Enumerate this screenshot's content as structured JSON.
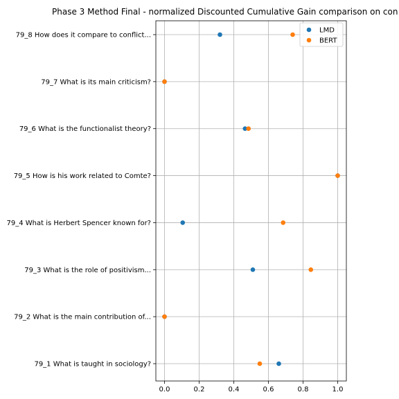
{
  "chart_data": {
    "type": "scatter",
    "title": "Phase 3 Method Final - normalized Discounted Cumulative Gain comparison on con",
    "xlabel": "",
    "ylabel": "",
    "xlim": [
      -0.05,
      1.05
    ],
    "x_ticks": [
      "0.0",
      "0.2",
      "0.4",
      "0.6",
      "0.8",
      "1.0"
    ],
    "grid": true,
    "legend_position": "top-right",
    "categories": [
      "79_1 What is taught in sociology?",
      "79_2 What is the main contribution of...",
      "79_3 What is the role of positivism...",
      "79_4 What is Herbert Spencer known for?",
      "79_5 How is his work related to Comte?",
      "79_6 What is the functionalist theory?",
      "79_7 What is its main criticism?",
      "79_8 How does it compare to conflict..."
    ],
    "series": [
      {
        "name": "LMD",
        "color": "#1f77b4",
        "values": [
          0.66,
          0.0,
          0.51,
          0.105,
          1.0,
          0.465,
          0.0,
          0.32
        ]
      },
      {
        "name": "BERT",
        "color": "#ff7f0e",
        "values": [
          0.55,
          0.0,
          0.845,
          0.685,
          1.0,
          0.485,
          0.0,
          0.74
        ]
      }
    ]
  }
}
